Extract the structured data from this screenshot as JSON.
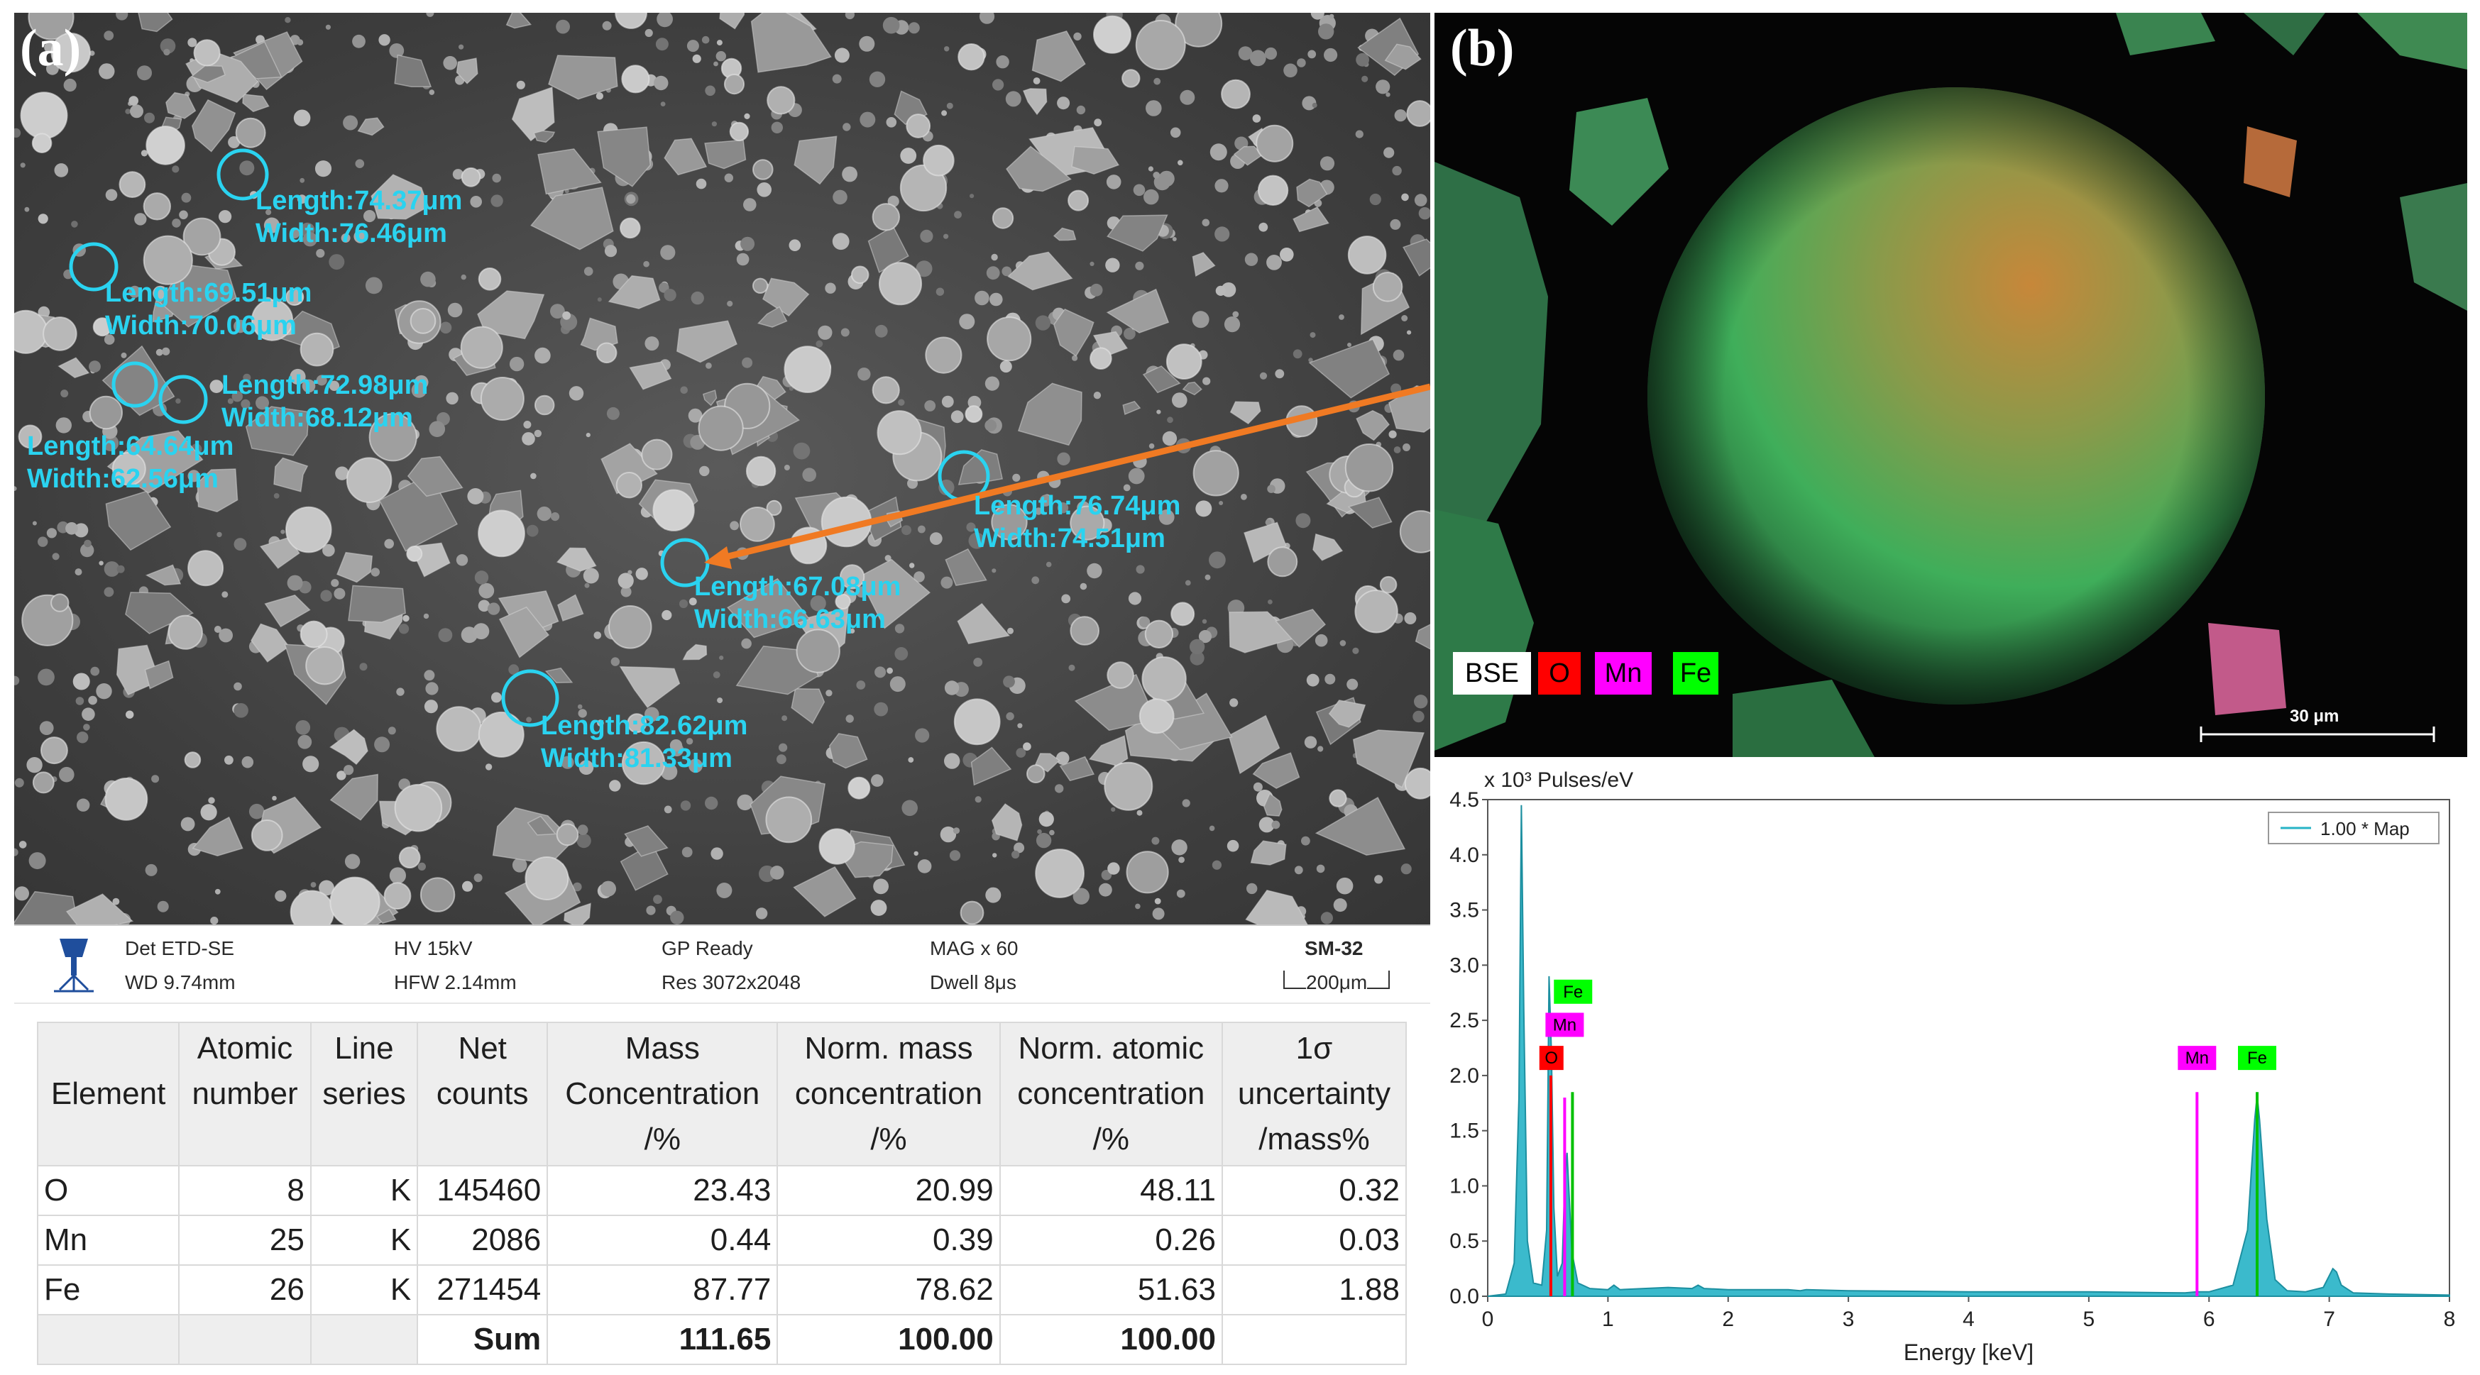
{
  "panel_a": {
    "label": "(a)",
    "measurements": [
      {
        "length": "Length:74.37μm",
        "width": "Width:76.46μm"
      },
      {
        "length": "Length:69.51μm",
        "width": "Width:70.06μm"
      },
      {
        "length": "Length:72.98μm",
        "width": "Width:68.12μm"
      },
      {
        "length": "Length:64.64μm",
        "width": "Width:62.56μm"
      },
      {
        "length": "Length:76.74μm",
        "width": "Width:74.51μm"
      },
      {
        "length": "Length:67.08μm",
        "width": "Width:66.63μm"
      },
      {
        "length": "Length:82.62μm",
        "width": "Width:81.33μm"
      }
    ],
    "info_bar": {
      "det": "Det ETD-SE",
      "hv": "HV 15kV",
      "gp": "GP Ready",
      "mag": "MAG x 60",
      "sample": "SM-32",
      "wd": "WD 9.74mm",
      "hfw": "HFW 2.14mm",
      "res": "Res 3072x2048",
      "dwell": "Dwell 8μs",
      "scale": "200μm"
    },
    "colors": {
      "annotation": "#2ad3f0",
      "arrow": "#f07a23"
    }
  },
  "table": {
    "headers": [
      [
        "Element"
      ],
      [
        "Atomic",
        "number"
      ],
      [
        "Line",
        "series"
      ],
      [
        "Net",
        "counts"
      ],
      [
        "Mass",
        "Concentration",
        "/%"
      ],
      [
        "Norm. mass",
        "concentration",
        "/%"
      ],
      [
        "Norm. atomic",
        "concentration",
        "/%"
      ],
      [
        "1σ",
        "uncertainty",
        "/mass%"
      ]
    ],
    "rows": [
      [
        "O",
        "8",
        "K",
        "145460",
        "23.43",
        "20.99",
        "48.11",
        "0.32"
      ],
      [
        "Mn",
        "25",
        "K",
        "2086",
        "0.44",
        "0.39",
        "0.26",
        "0.03"
      ],
      [
        "Fe",
        "26",
        "K",
        "271454",
        "87.77",
        "78.62",
        "51.63",
        "1.88"
      ]
    ],
    "sum_row": [
      "",
      "",
      "",
      "Sum",
      "111.65",
      "100.00",
      "100.00",
      ""
    ]
  },
  "panel_b": {
    "label": "(b)",
    "legend": [
      {
        "text": "BSE",
        "bg": "#ffffff",
        "fg": "#000000"
      },
      {
        "text": "O",
        "bg": "#ff0000",
        "fg": "#000000"
      },
      {
        "text": "Mn",
        "bg": "#ff00ff",
        "fg": "#000000"
      },
      {
        "text": "Fe",
        "bg": "#00ff00",
        "fg": "#000000"
      }
    ],
    "scale_bar": "30 μm"
  },
  "chart_data": {
    "type": "line",
    "title": "",
    "ylabel": "x 10³  Pulses/eV",
    "xlabel": "Energy [keV]",
    "xlim": [
      0,
      8
    ],
    "ylim": [
      0,
      4.5
    ],
    "xticks": [
      0,
      1,
      2,
      3,
      4,
      5,
      6,
      7,
      8
    ],
    "yticks": [
      0.0,
      0.5,
      1.0,
      1.5,
      2.0,
      2.5,
      3.0,
      3.5,
      4.0,
      4.5
    ],
    "legend": "1.00 * Map",
    "legend_position": "top-right",
    "series_color": "#26b3c6",
    "series": [
      {
        "name": "1.00 * Map",
        "x": [
          0.0,
          0.15,
          0.22,
          0.26,
          0.28,
          0.3,
          0.33,
          0.38,
          0.45,
          0.49,
          0.51,
          0.53,
          0.55,
          0.58,
          0.62,
          0.64,
          0.66,
          0.7,
          0.75,
          0.85,
          1.0,
          1.05,
          1.1,
          1.3,
          1.5,
          1.7,
          1.75,
          1.8,
          2.0,
          2.5,
          2.6,
          2.65,
          3.0,
          4.0,
          5.0,
          5.8,
          5.9,
          6.0,
          6.2,
          6.32,
          6.38,
          6.4,
          6.42,
          6.48,
          6.55,
          6.65,
          6.8,
          6.95,
          7.03,
          7.06,
          7.1,
          7.2,
          7.5,
          8.0
        ],
        "y": [
          0.0,
          0.02,
          0.3,
          1.8,
          4.45,
          2.6,
          0.5,
          0.12,
          0.1,
          0.6,
          2.9,
          2.2,
          0.8,
          0.18,
          0.3,
          1.0,
          1.3,
          0.4,
          0.12,
          0.07,
          0.06,
          0.1,
          0.06,
          0.07,
          0.08,
          0.07,
          0.1,
          0.07,
          0.06,
          0.06,
          0.05,
          0.06,
          0.05,
          0.04,
          0.04,
          0.03,
          0.04,
          0.04,
          0.1,
          0.6,
          1.6,
          1.82,
          1.6,
          0.7,
          0.15,
          0.05,
          0.04,
          0.08,
          0.25,
          0.22,
          0.1,
          0.03,
          0.02,
          0.01
        ]
      }
    ],
    "peak_labels": [
      {
        "text": "Fe",
        "x": 0.71,
        "y": 2.65,
        "bg": "#00ff00"
      },
      {
        "text": "Mn",
        "x": 0.64,
        "y": 2.35,
        "bg": "#ff00ff"
      },
      {
        "text": "O",
        "x": 0.53,
        "y": 2.05,
        "bg": "#ff0000"
      },
      {
        "text": "Mn",
        "x": 5.9,
        "y": 2.05,
        "bg": "#ff00ff"
      },
      {
        "text": "Fe",
        "x": 6.4,
        "y": 2.05,
        "bg": "#00ff00"
      }
    ],
    "marker_lines": [
      {
        "x": 0.525,
        "y": 2.0,
        "color": "#ff0000"
      },
      {
        "x": 0.64,
        "y": 1.8,
        "color": "#ff00ff"
      },
      {
        "x": 0.705,
        "y": 1.85,
        "color": "#00c000"
      },
      {
        "x": 5.9,
        "y": 1.85,
        "color": "#ff00ff"
      },
      {
        "x": 6.4,
        "y": 1.85,
        "color": "#00c000"
      }
    ]
  }
}
